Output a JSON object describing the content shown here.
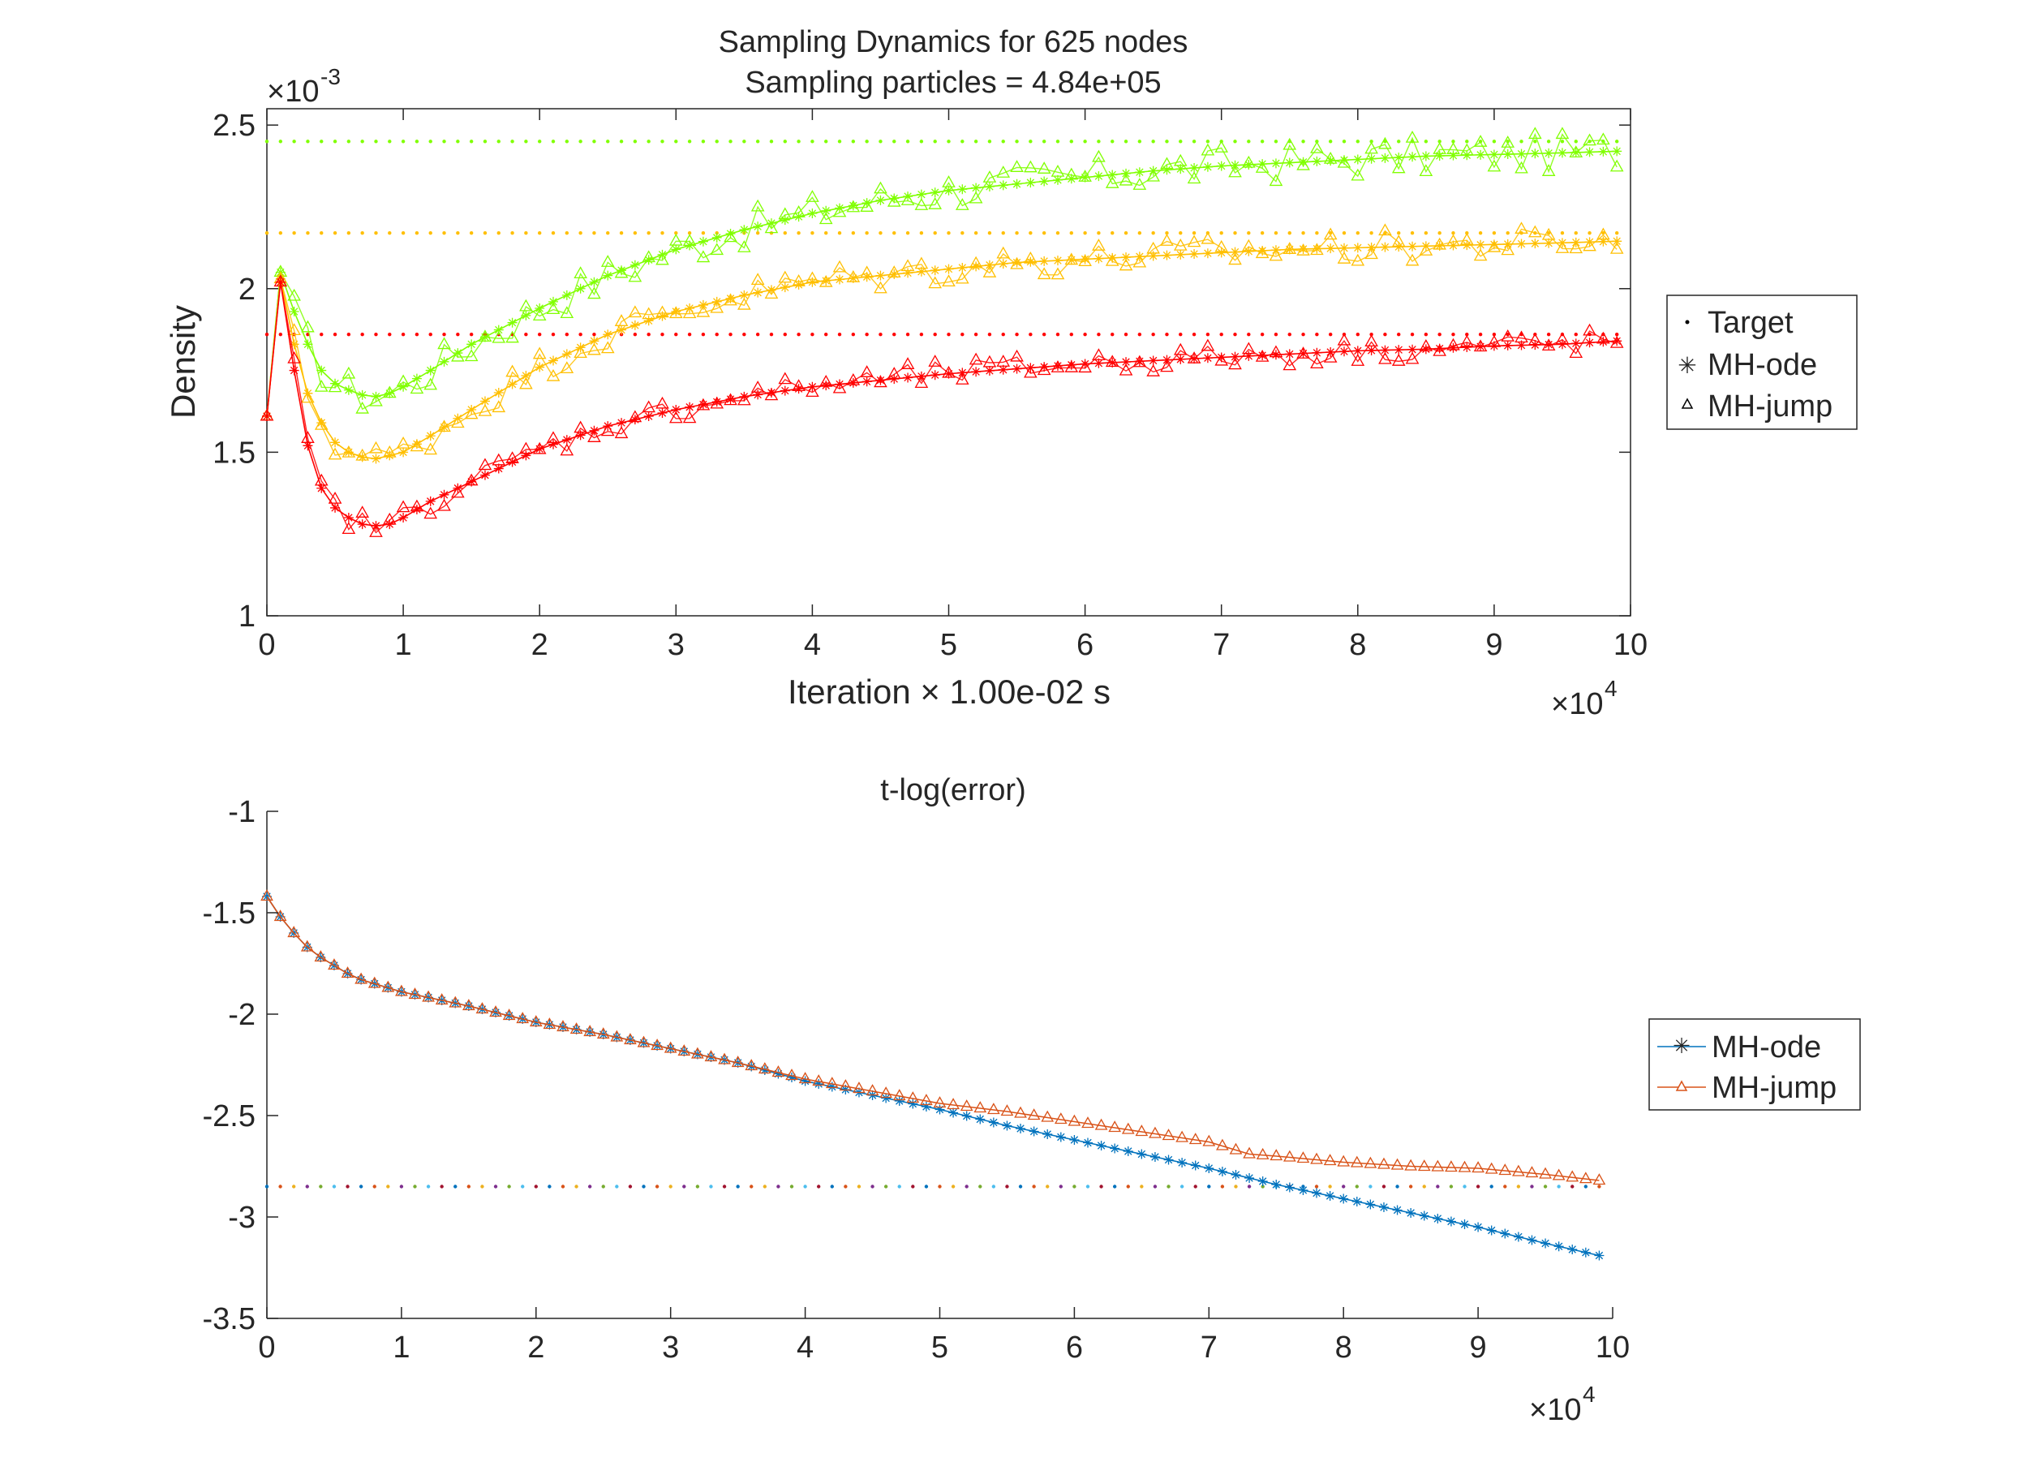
{
  "figure": {
    "background": "#ffffff",
    "axis_color": "#262626"
  },
  "chart_data": [
    {
      "type": "line",
      "title": "Sampling Dynamics for 625 nodes",
      "subtitle": "Sampling particles = 4.84e+05",
      "xlabel": "Iteration × 1.00e-02 s",
      "ylabel": "Density",
      "xlim": [
        0,
        10
      ],
      "ylim": [
        1,
        2.55
      ],
      "xticks": [
        "0",
        "1",
        "2",
        "3",
        "4",
        "5",
        "6",
        "7",
        "8",
        "9",
        "10"
      ],
      "yticks": [
        "1",
        "1.5",
        "2",
        "2.5"
      ],
      "x_exponent_base": "×10",
      "x_exponent_power": "4",
      "y_exponent_base": "×10",
      "y_exponent_power": "-3",
      "legend": {
        "placement": "outside-right",
        "entries": [
          {
            "label": "Target",
            "marker": "dot"
          },
          {
            "label": "MH-ode",
            "marker": "star"
          },
          {
            "label": "MH-jump",
            "marker": "triangle"
          }
        ]
      },
      "x_units_note": "x values in units of 10^4 iterations; y values in units of 10^-3",
      "groups": [
        {
          "color": "#80ff00",
          "target": 2.45,
          "ode_curve": [
            [
              0,
              1.61
            ],
            [
              0.1,
              2.05
            ],
            [
              0.2,
              1.93
            ],
            [
              0.3,
              1.83
            ],
            [
              0.4,
              1.75
            ],
            [
              0.5,
              1.71
            ],
            [
              0.6,
              1.69
            ],
            [
              0.7,
              1.675
            ],
            [
              0.8,
              1.67
            ],
            [
              0.9,
              1.68
            ],
            [
              1.0,
              1.7
            ],
            [
              1.2,
              1.75
            ],
            [
              1.5,
              1.83
            ],
            [
              2.0,
              1.94
            ],
            [
              2.5,
              2.04
            ],
            [
              3.0,
              2.12
            ],
            [
              3.5,
              2.18
            ],
            [
              4.0,
              2.23
            ],
            [
              4.5,
              2.27
            ],
            [
              5.0,
              2.3
            ],
            [
              5.5,
              2.32
            ],
            [
              6.0,
              2.34
            ],
            [
              6.5,
              2.36
            ],
            [
              7.0,
              2.375
            ],
            [
              7.5,
              2.385
            ],
            [
              8.0,
              2.395
            ],
            [
              8.5,
              2.405
            ],
            [
              9.0,
              2.41
            ],
            [
              9.5,
              2.415
            ],
            [
              9.9,
              2.42
            ]
          ],
          "jump_noise": 0.06
        },
        {
          "color": "#ffbf00",
          "target": 2.17,
          "ode_curve": [
            [
              0,
              1.61
            ],
            [
              0.1,
              2.03
            ],
            [
              0.2,
              1.83
            ],
            [
              0.3,
              1.68
            ],
            [
              0.4,
              1.59
            ],
            [
              0.5,
              1.53
            ],
            [
              0.6,
              1.5
            ],
            [
              0.7,
              1.485
            ],
            [
              0.8,
              1.48
            ],
            [
              0.9,
              1.49
            ],
            [
              1.0,
              1.5
            ],
            [
              1.2,
              1.55
            ],
            [
              1.5,
              1.63
            ],
            [
              2.0,
              1.76
            ],
            [
              2.5,
              1.86
            ],
            [
              3.0,
              1.93
            ],
            [
              3.5,
              1.98
            ],
            [
              4.0,
              2.02
            ],
            [
              4.5,
              2.04
            ],
            [
              5.0,
              2.06
            ],
            [
              5.5,
              2.08
            ],
            [
              6.0,
              2.09
            ],
            [
              6.5,
              2.1
            ],
            [
              7.0,
              2.11
            ],
            [
              7.5,
              2.12
            ],
            [
              8.0,
              2.125
            ],
            [
              8.5,
              2.13
            ],
            [
              9.0,
              2.135
            ],
            [
              9.5,
              2.14
            ],
            [
              9.9,
              2.145
            ]
          ],
          "jump_noise": 0.05
        },
        {
          "color": "#ff0000",
          "target": 1.86,
          "ode_curve": [
            [
              0,
              1.61
            ],
            [
              0.1,
              2.02
            ],
            [
              0.2,
              1.75
            ],
            [
              0.3,
              1.52
            ],
            [
              0.4,
              1.39
            ],
            [
              0.5,
              1.33
            ],
            [
              0.6,
              1.3
            ],
            [
              0.7,
              1.28
            ],
            [
              0.8,
              1.275
            ],
            [
              0.9,
              1.28
            ],
            [
              1.0,
              1.3
            ],
            [
              1.2,
              1.35
            ],
            [
              1.5,
              1.41
            ],
            [
              2.0,
              1.51
            ],
            [
              2.5,
              1.58
            ],
            [
              3.0,
              1.63
            ],
            [
              3.5,
              1.67
            ],
            [
              4.0,
              1.7
            ],
            [
              4.5,
              1.72
            ],
            [
              5.0,
              1.74
            ],
            [
              5.5,
              1.755
            ],
            [
              6.0,
              1.77
            ],
            [
              6.5,
              1.78
            ],
            [
              7.0,
              1.79
            ],
            [
              7.5,
              1.8
            ],
            [
              8.0,
              1.81
            ],
            [
              8.5,
              1.815
            ],
            [
              9.0,
              1.825
            ],
            [
              9.5,
              1.83
            ],
            [
              9.9,
              1.84
            ]
          ],
          "jump_noise": 0.04
        }
      ]
    },
    {
      "type": "line",
      "title": "t-log(error)",
      "xlim": [
        0,
        10
      ],
      "ylim": [
        -3.5,
        -1
      ],
      "xticks": [
        "0",
        "1",
        "2",
        "3",
        "4",
        "5",
        "6",
        "7",
        "8",
        "9",
        "10"
      ],
      "yticks": [
        "-1",
        "-1.5",
        "-2",
        "-2.5",
        "-3",
        "-3.5"
      ],
      "x_exponent_base": "×10",
      "x_exponent_power": "4",
      "target_level": -2.85,
      "legend": {
        "placement": "outside-right",
        "entries": [
          {
            "label": "MH-ode",
            "color": "#0072bd",
            "marker": "star"
          },
          {
            "label": "MH-jump",
            "color": "#d95319",
            "marker": "triangle"
          }
        ]
      },
      "series": [
        {
          "name": "MH-ode",
          "color": "#0072bd",
          "curve": [
            [
              0,
              -1.42
            ],
            [
              0.1,
              -1.52
            ],
            [
              0.2,
              -1.6
            ],
            [
              0.3,
              -1.67
            ],
            [
              0.4,
              -1.72
            ],
            [
              0.5,
              -1.76
            ],
            [
              0.6,
              -1.8
            ],
            [
              0.7,
              -1.83
            ],
            [
              0.8,
              -1.85
            ],
            [
              1.0,
              -1.89
            ],
            [
              1.5,
              -1.96
            ],
            [
              2.0,
              -2.04
            ],
            [
              2.5,
              -2.1
            ],
            [
              3.0,
              -2.17
            ],
            [
              3.5,
              -2.24
            ],
            [
              4.0,
              -2.33
            ],
            [
              4.5,
              -2.4
            ],
            [
              5.0,
              -2.47
            ],
            [
              5.5,
              -2.55
            ],
            [
              6.0,
              -2.62
            ],
            [
              6.5,
              -2.69
            ],
            [
              7.0,
              -2.76
            ],
            [
              7.5,
              -2.84
            ],
            [
              8.0,
              -2.91
            ],
            [
              8.5,
              -2.98
            ],
            [
              9.0,
              -3.05
            ],
            [
              9.5,
              -3.13
            ],
            [
              9.9,
              -3.19
            ]
          ]
        },
        {
          "name": "MH-jump",
          "color": "#d95319",
          "curve": [
            [
              0,
              -1.42
            ],
            [
              0.1,
              -1.52
            ],
            [
              0.2,
              -1.6
            ],
            [
              0.3,
              -1.67
            ],
            [
              0.4,
              -1.72
            ],
            [
              0.5,
              -1.76
            ],
            [
              0.6,
              -1.8
            ],
            [
              0.7,
              -1.83
            ],
            [
              0.8,
              -1.85
            ],
            [
              1.0,
              -1.89
            ],
            [
              1.5,
              -1.96
            ],
            [
              2.0,
              -2.04
            ],
            [
              2.5,
              -2.1
            ],
            [
              3.0,
              -2.17
            ],
            [
              3.5,
              -2.24
            ],
            [
              4.0,
              -2.32
            ],
            [
              4.5,
              -2.38
            ],
            [
              5.0,
              -2.44
            ],
            [
              5.5,
              -2.48
            ],
            [
              6.0,
              -2.53
            ],
            [
              6.5,
              -2.58
            ],
            [
              7.0,
              -2.63
            ],
            [
              7.3,
              -2.69
            ],
            [
              7.5,
              -2.7
            ],
            [
              8.0,
              -2.73
            ],
            [
              8.5,
              -2.75
            ],
            [
              9.0,
              -2.76
            ],
            [
              9.5,
              -2.79
            ],
            [
              9.9,
              -2.82
            ]
          ]
        }
      ]
    }
  ]
}
